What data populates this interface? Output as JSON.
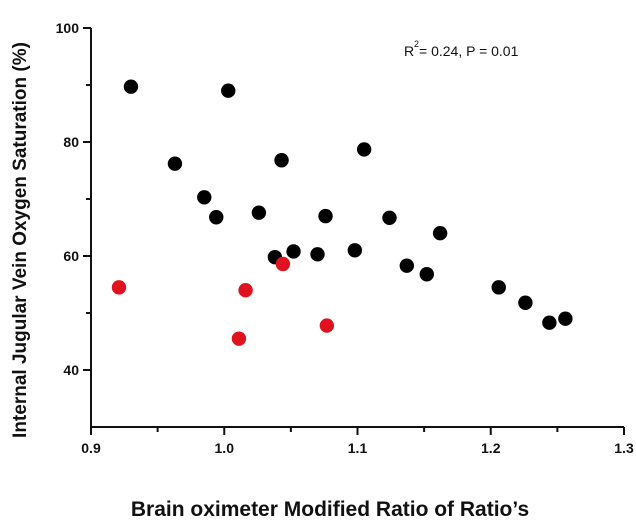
{
  "chart_data": {
    "type": "scatter",
    "title": "",
    "xlabel": "Brain oximeter Modified Ratio of Ratio’s",
    "ylabel": "Internal Jugular Vein Oxygen Saturation (%)",
    "xlim": [
      0.9,
      1.3
    ],
    "ylim": [
      30,
      100
    ],
    "xticks": [
      "0.9",
      "1.0",
      "1.1",
      "1.2",
      "1.3"
    ],
    "yticks": [
      "40",
      "60",
      "80",
      "100"
    ],
    "grid": false,
    "annotation": {
      "r_label": "R",
      "r_sup": "2",
      "rest": " = 0.24, P = 0.01"
    },
    "series": [
      {
        "color": "#000000",
        "points": [
          [
            0.93,
            89.7
          ],
          [
            1.003,
            89.0
          ],
          [
            0.963,
            76.2
          ],
          [
            1.043,
            76.8
          ],
          [
            1.105,
            78.7
          ],
          [
            0.985,
            70.3
          ],
          [
            0.994,
            66.8
          ],
          [
            1.026,
            67.6
          ],
          [
            1.076,
            67.0
          ],
          [
            1.124,
            66.7
          ],
          [
            1.162,
            64.0
          ],
          [
            1.038,
            59.8
          ],
          [
            1.052,
            60.8
          ],
          [
            1.07,
            60.3
          ],
          [
            1.098,
            61.0
          ],
          [
            1.137,
            58.3
          ],
          [
            1.152,
            56.8
          ],
          [
            1.206,
            54.5
          ],
          [
            1.226,
            51.8
          ],
          [
            1.244,
            48.3
          ],
          [
            1.256,
            49.0
          ]
        ]
      },
      {
        "color": "#e0121f",
        "points": [
          [
            0.921,
            54.5
          ],
          [
            1.011,
            45.5
          ],
          [
            1.016,
            54.0
          ],
          [
            1.044,
            58.6
          ],
          [
            1.077,
            47.8
          ]
        ]
      }
    ]
  }
}
